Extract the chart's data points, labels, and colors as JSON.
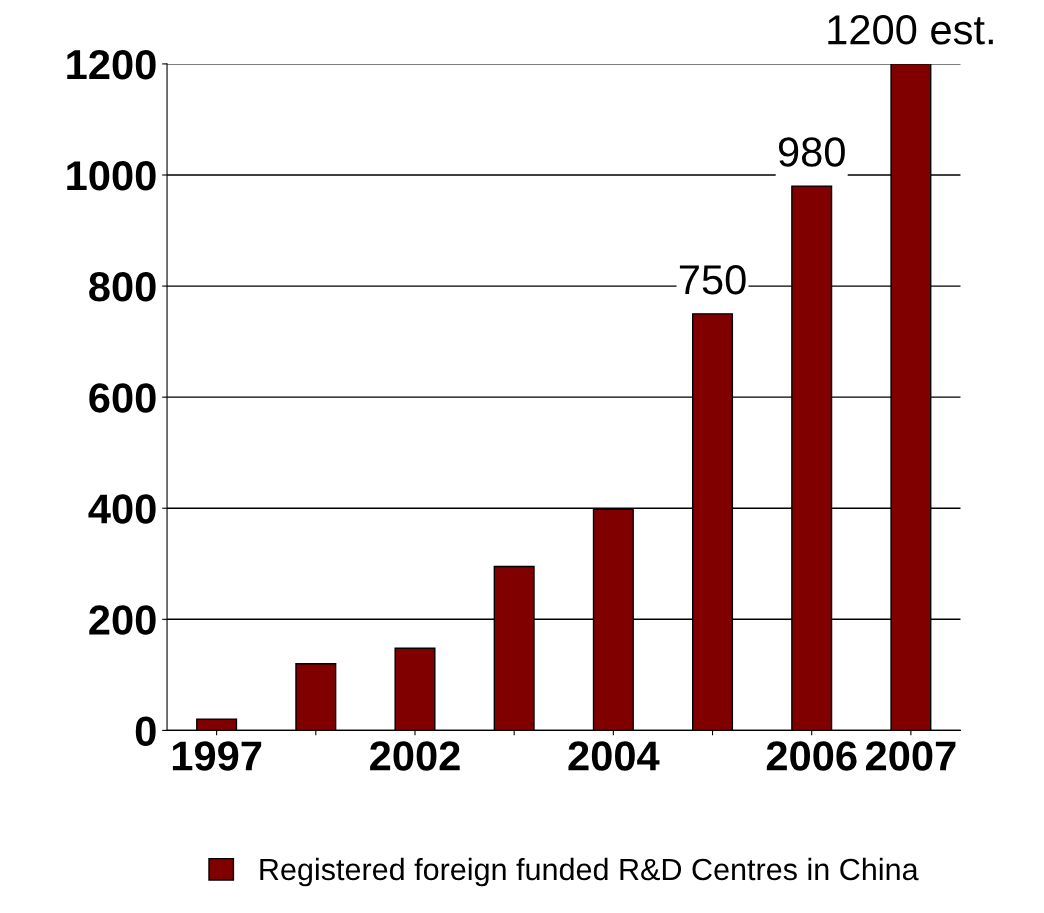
{
  "chart_data": {
    "type": "bar",
    "categories": [
      "1997",
      null,
      "2002",
      null,
      "2004",
      null,
      "2006",
      "2007"
    ],
    "series": [
      {
        "name": "Registered foreign funded R&D Centres in China",
        "color": "#800000",
        "values": [
          20,
          120,
          148,
          295,
          398,
          750,
          980,
          1200
        ],
        "value_labels": [
          null,
          null,
          null,
          null,
          null,
          "750",
          "980",
          "1200 est."
        ]
      }
    ],
    "ylim": [
      0,
      1200
    ],
    "yticks": [
      0,
      200,
      400,
      600,
      800,
      1000,
      1200
    ],
    "grid": "y",
    "legend": "bottom"
  }
}
